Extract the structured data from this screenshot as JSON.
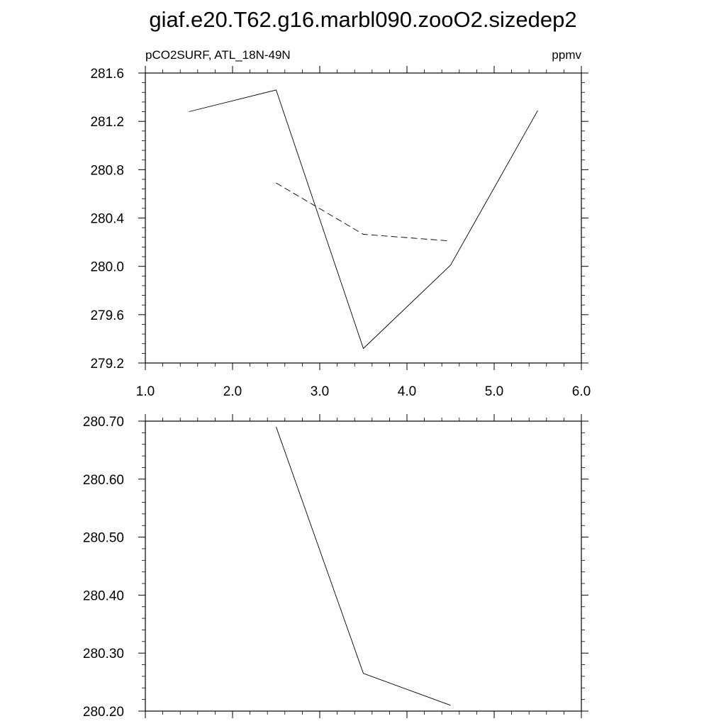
{
  "title": "giaf.e20.T62.g16.marbl090.zooO2.sizedep2",
  "chart_data": [
    {
      "type": "line",
      "left_subtitle": "pCO2SURF, ATL_18N-49N",
      "right_subtitle": "ppmv",
      "xlim": [
        1.0,
        6.0
      ],
      "x_ticks": [
        "1.0",
        "2.0",
        "3.0",
        "4.0",
        "5.0",
        "6.0"
      ],
      "ylim": [
        279.2,
        281.6
      ],
      "y_ticks": [
        "279.2",
        "279.6",
        "280.0",
        "280.4",
        "280.8",
        "281.2",
        "281.6"
      ],
      "series": [
        {
          "style": "solid",
          "x": [
            1.5,
            2.5,
            3.5,
            4.5,
            5.5
          ],
          "y": [
            281.28,
            281.46,
            279.32,
            280.01,
            281.29
          ]
        },
        {
          "style": "dashed",
          "x": [
            2.5,
            3.5,
            4.5
          ],
          "y": [
            280.69,
            280.265,
            280.21
          ]
        }
      ]
    },
    {
      "type": "line",
      "xlim": [
        1.0,
        6.0
      ],
      "ylim": [
        280.2,
        280.7
      ],
      "y_ticks": [
        "280.20",
        "280.30",
        "280.40",
        "280.50",
        "280.60",
        "280.70"
      ],
      "series": [
        {
          "style": "solid",
          "x": [
            2.5,
            3.5,
            4.5
          ],
          "y": [
            280.69,
            280.265,
            280.21
          ]
        }
      ]
    }
  ]
}
